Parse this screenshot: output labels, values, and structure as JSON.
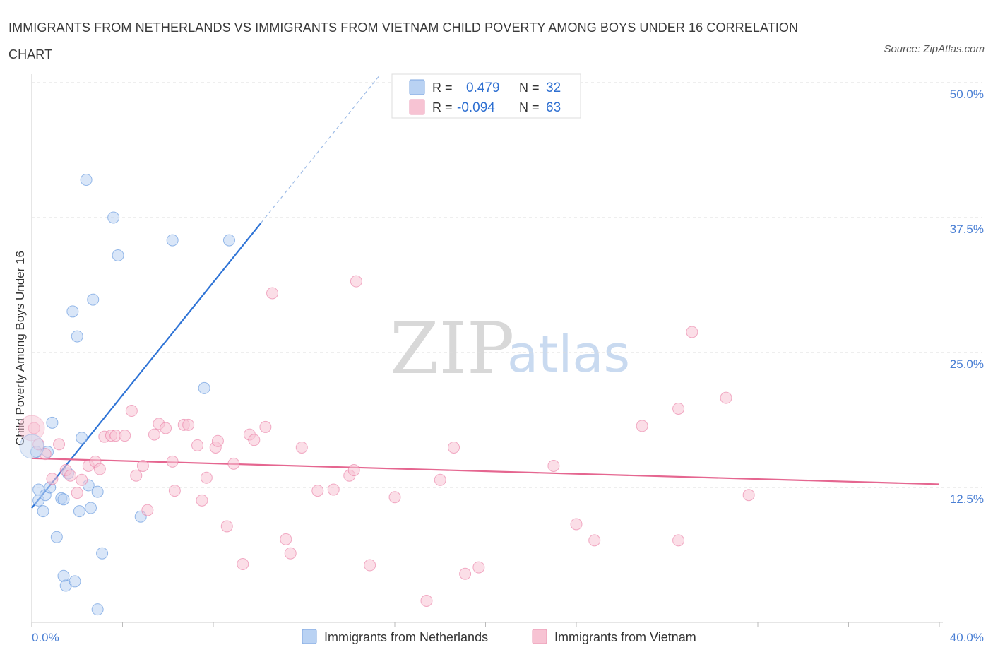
{
  "title": "IMMIGRANTS FROM NETHERLANDS VS IMMIGRANTS FROM VIETNAM CHILD POVERTY AMONG BOYS UNDER 16 CORRELATION CHART",
  "source": "Source: ZipAtlas.com",
  "watermark": {
    "zip": "ZIP",
    "atlas": "atlas"
  },
  "legend": {
    "rows": [
      {
        "r_label": "R =",
        "r_value": "0.479",
        "n_label": "N =",
        "n_value": "32",
        "color": "#a9c8f2"
      },
      {
        "r_label": "R =",
        "r_value": "-0.094",
        "n_label": "N = ",
        "n_value": "63",
        "color": "#f5b8cb"
      }
    ]
  },
  "bottom_legend": [
    {
      "label": "Immigrants from Netherlands",
      "color": "#a9c8f2"
    },
    {
      "label": "Immigrants from Vietnam",
      "color": "#f5b8cb"
    }
  ],
  "chart_data": {
    "type": "scatter",
    "title": "IMMIGRANTS FROM NETHERLANDS VS IMMIGRANTS FROM VIETNAM CHILD POVERTY AMONG BOYS UNDER 16 CORRELATION CHART",
    "xlabel": "",
    "ylabel": "Child Poverty Among Boys Under 16",
    "xlim": [
      0,
      40
    ],
    "ylim": [
      0,
      50
    ],
    "x_tick_labels": [
      "0.0%",
      "40.0%"
    ],
    "y_ticks": [
      12.5,
      25.0,
      37.5,
      50.0
    ],
    "y_tick_labels": [
      "12.5%",
      "25.0%",
      "37.5%",
      "50.0%"
    ],
    "grid": true,
    "series": [
      {
        "name": "Immigrants from Netherlands",
        "color": "#4a86d8",
        "fill": "#b9d2f3",
        "trend": {
          "x1": 0.0,
          "y1": 10.6,
          "x2": 10.1,
          "y2": 37.0,
          "dash_to_x": 15.3,
          "dash_to_y": 50.6
        },
        "points": [
          [
            0.2,
            15.8
          ],
          [
            0.3,
            12.3
          ],
          [
            0.3,
            11.3
          ],
          [
            0.5,
            10.3
          ],
          [
            0.6,
            11.8
          ],
          [
            0.7,
            15.8
          ],
          [
            0.8,
            12.5
          ],
          [
            0.9,
            18.5
          ],
          [
            1.1,
            7.9
          ],
          [
            1.3,
            11.5
          ],
          [
            1.4,
            11.4
          ],
          [
            1.4,
            4.3
          ],
          [
            1.5,
            3.4
          ],
          [
            1.6,
            13.8
          ],
          [
            1.8,
            28.8
          ],
          [
            1.9,
            3.8
          ],
          [
            2.0,
            26.5
          ],
          [
            2.1,
            10.3
          ],
          [
            2.2,
            17.1
          ],
          [
            2.4,
            41.0
          ],
          [
            2.5,
            12.7
          ],
          [
            2.6,
            10.6
          ],
          [
            2.7,
            29.9
          ],
          [
            2.9,
            12.1
          ],
          [
            3.1,
            6.4
          ],
          [
            2.9,
            1.2
          ],
          [
            3.6,
            37.5
          ],
          [
            3.8,
            34.0
          ],
          [
            4.8,
            9.8
          ],
          [
            6.2,
            35.4
          ],
          [
            7.6,
            21.7
          ],
          [
            8.7,
            35.4
          ]
        ]
      },
      {
        "name": "Immigrants from Vietnam",
        "color": "#e8709a",
        "fill": "#f7c3d3",
        "trend": {
          "x1": 0.0,
          "y1": 15.2,
          "x2": 40.0,
          "y2": 12.8
        },
        "points": [
          [
            0.1,
            18.0
          ],
          [
            0.3,
            16.5
          ],
          [
            0.6,
            15.6
          ],
          [
            0.9,
            13.3
          ],
          [
            1.2,
            16.5
          ],
          [
            1.5,
            14.1
          ],
          [
            1.7,
            13.6
          ],
          [
            2.0,
            12.0
          ],
          [
            2.2,
            13.2
          ],
          [
            2.5,
            14.5
          ],
          [
            2.8,
            14.9
          ],
          [
            3.0,
            14.2
          ],
          [
            3.2,
            17.2
          ],
          [
            3.5,
            17.3
          ],
          [
            3.7,
            17.3
          ],
          [
            4.1,
            17.3
          ],
          [
            4.4,
            19.6
          ],
          [
            4.6,
            13.6
          ],
          [
            4.9,
            14.5
          ],
          [
            5.1,
            10.4
          ],
          [
            5.4,
            17.4
          ],
          [
            5.6,
            18.4
          ],
          [
            5.9,
            18.0
          ],
          [
            6.2,
            14.9
          ],
          [
            6.3,
            12.2
          ],
          [
            6.7,
            18.3
          ],
          [
            6.9,
            18.3
          ],
          [
            7.3,
            16.4
          ],
          [
            7.5,
            11.3
          ],
          [
            7.7,
            13.4
          ],
          [
            8.1,
            16.2
          ],
          [
            8.2,
            16.8
          ],
          [
            8.6,
            8.9
          ],
          [
            8.9,
            14.7
          ],
          [
            9.3,
            5.4
          ],
          [
            9.6,
            17.4
          ],
          [
            9.8,
            16.9
          ],
          [
            10.3,
            18.1
          ],
          [
            10.6,
            30.5
          ],
          [
            11.2,
            7.7
          ],
          [
            11.4,
            6.4
          ],
          [
            11.9,
            16.2
          ],
          [
            12.6,
            12.2
          ],
          [
            13.3,
            12.3
          ],
          [
            14.0,
            13.6
          ],
          [
            14.2,
            14.1
          ],
          [
            14.3,
            31.6
          ],
          [
            14.9,
            5.3
          ],
          [
            16.0,
            11.6
          ],
          [
            17.4,
            2.0
          ],
          [
            18.0,
            13.2
          ],
          [
            18.6,
            16.2
          ],
          [
            19.1,
            4.5
          ],
          [
            19.7,
            5.1
          ],
          [
            23.0,
            14.5
          ],
          [
            24.0,
            9.1
          ],
          [
            24.8,
            7.6
          ],
          [
            26.9,
            18.2
          ],
          [
            28.5,
            19.8
          ],
          [
            28.5,
            7.6
          ],
          [
            29.1,
            26.9
          ],
          [
            30.6,
            20.8
          ],
          [
            31.6,
            11.8
          ]
        ]
      }
    ]
  }
}
